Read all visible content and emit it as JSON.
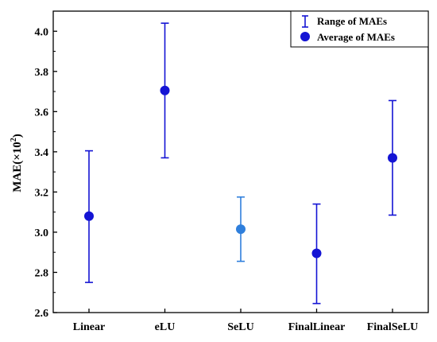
{
  "chart_data": {
    "type": "scatter",
    "categories": [
      "Linear",
      "eLU",
      "SeLU",
      "FinalLinear",
      "FinalSeLU"
    ],
    "average": [
      3.08,
      3.705,
      3.015,
      2.895,
      3.37
    ],
    "range_min": [
      2.75,
      3.37,
      2.855,
      2.645,
      3.085
    ],
    "range_max": [
      3.405,
      4.04,
      3.175,
      3.14,
      3.655
    ],
    "ylabel": {
      "base": "MAE(×10",
      "exp": "2",
      "close": ")"
    },
    "ylim": [
      2.6,
      4.1
    ],
    "yticks": [
      "2.6",
      "2.8",
      "3.0",
      "3.2",
      "3.4",
      "3.6",
      "3.8",
      "4.0"
    ],
    "legend": {
      "position": "top-right",
      "range_label": "Range of MAEs",
      "average_label": "Average of MAEs"
    },
    "colors": {
      "series": "#1414d4",
      "highlight": "#2f7fdc",
      "highlight_index": 2
    }
  }
}
